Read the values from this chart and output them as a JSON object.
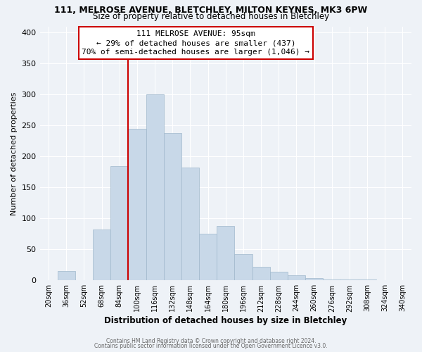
{
  "title_line1": "111, MELROSE AVENUE, BLETCHLEY, MILTON KEYNES, MK3 6PW",
  "title_line2": "Size of property relative to detached houses in Bletchley",
  "xlabel": "Distribution of detached houses by size in Bletchley",
  "ylabel": "Number of detached properties",
  "bar_labels": [
    "20sqm",
    "36sqm",
    "52sqm",
    "68sqm",
    "84sqm",
    "100sqm",
    "116sqm",
    "132sqm",
    "148sqm",
    "164sqm",
    "180sqm",
    "196sqm",
    "212sqm",
    "228sqm",
    "244sqm",
    "260sqm",
    "276sqm",
    "292sqm",
    "308sqm",
    "324sqm",
    "340sqm"
  ],
  "bar_values": [
    0,
    15,
    0,
    82,
    185,
    245,
    300,
    238,
    182,
    75,
    88,
    42,
    22,
    14,
    8,
    4,
    2,
    1,
    1,
    0,
    0
  ],
  "bar_color": "#c8d8e8",
  "bar_edgecolor": "#a0b8cc",
  "highlight_color": "#cc0000",
  "annotation_title": "111 MELROSE AVENUE: 95sqm",
  "annotation_line1": "← 29% of detached houses are smaller (437)",
  "annotation_line2": "70% of semi-detached houses are larger (1,046) →",
  "ylim": [
    0,
    410
  ],
  "yticks": [
    0,
    50,
    100,
    150,
    200,
    250,
    300,
    350,
    400
  ],
  "footnote1": "Contains HM Land Registry data © Crown copyright and database right 2024.",
  "footnote2": "Contains public sector information licensed under the Open Government Licence v3.0.",
  "background_color": "#eef2f7",
  "plot_background": "#eef2f7",
  "grid_color": "#ffffff"
}
